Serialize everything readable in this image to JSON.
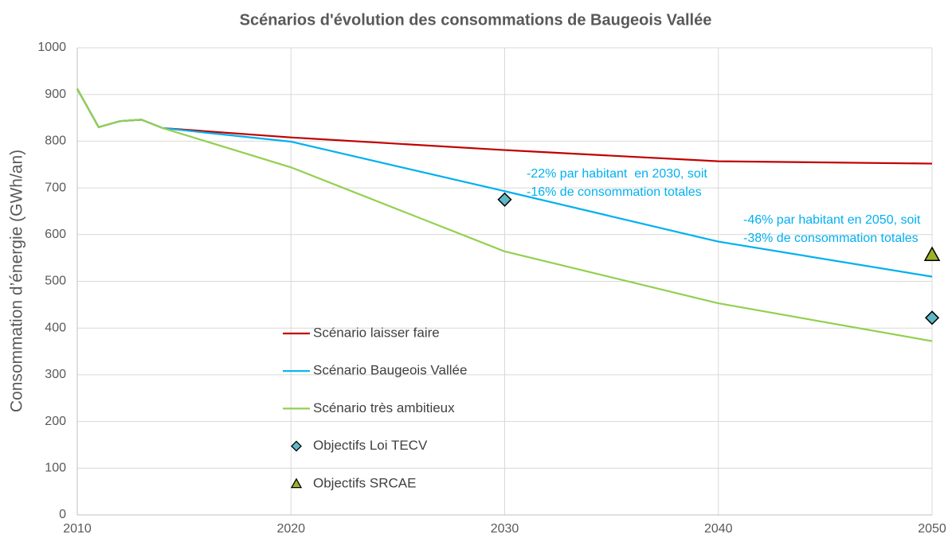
{
  "chart_data": {
    "type": "line",
    "title": "Scénarios d'évolution des consommations de Baugeois Vallée",
    "y_label": "Consommation d’énergie (GWh/an)",
    "xlim": [
      2010,
      2050
    ],
    "xticks": [
      2010,
      2020,
      2030,
      2040,
      2050
    ],
    "ylim": [
      0,
      1000
    ],
    "yticks": [
      0,
      100,
      200,
      300,
      400,
      500,
      600,
      700,
      800,
      900,
      1000
    ],
    "grid": true,
    "series": [
      {
        "name": "Scénario laisser faire",
        "color": "#c00000",
        "kind": "line",
        "x": [
          2010,
          2011,
          2012,
          2013,
          2014,
          2020,
          2030,
          2040,
          2050
        ],
        "values": [
          912,
          830,
          843,
          846,
          828,
          808,
          781,
          757,
          752
        ]
      },
      {
        "name": "Scénario Baugeois Vallée",
        "color": "#00b0f0",
        "kind": "line",
        "x": [
          2010,
          2011,
          2012,
          2013,
          2014,
          2020,
          2030,
          2040,
          2050
        ],
        "values": [
          912,
          830,
          843,
          846,
          828,
          799,
          693,
          585,
          510
        ]
      },
      {
        "name": "Scénario très ambitieux",
        "color": "#92d050",
        "kind": "line",
        "x": [
          2010,
          2011,
          2012,
          2013,
          2014,
          2020,
          2030,
          2040,
          2050
        ],
        "values": [
          912,
          830,
          843,
          846,
          828,
          744,
          564,
          453,
          372
        ]
      },
      {
        "name": "Objectifs Loi TECV",
        "color": "#5fb8c8",
        "kind": "diamond",
        "x": [
          2030,
          2050
        ],
        "values": [
          675,
          422
        ]
      },
      {
        "name": "Objectifs SRCAE",
        "color": "#9bb32a",
        "kind": "triangle",
        "x": [
          2050
        ],
        "values": [
          557
        ]
      }
    ],
    "annotation_color": "#00b0f0",
    "annotations": [
      {
        "text": [
          "-22% par habitant  en 2030, soit",
          "-16% de consommation totales"
        ]
      },
      {
        "text": [
          "-46% par habitant en 2050, soit",
          "-38% de consommation totales"
        ]
      }
    ]
  }
}
